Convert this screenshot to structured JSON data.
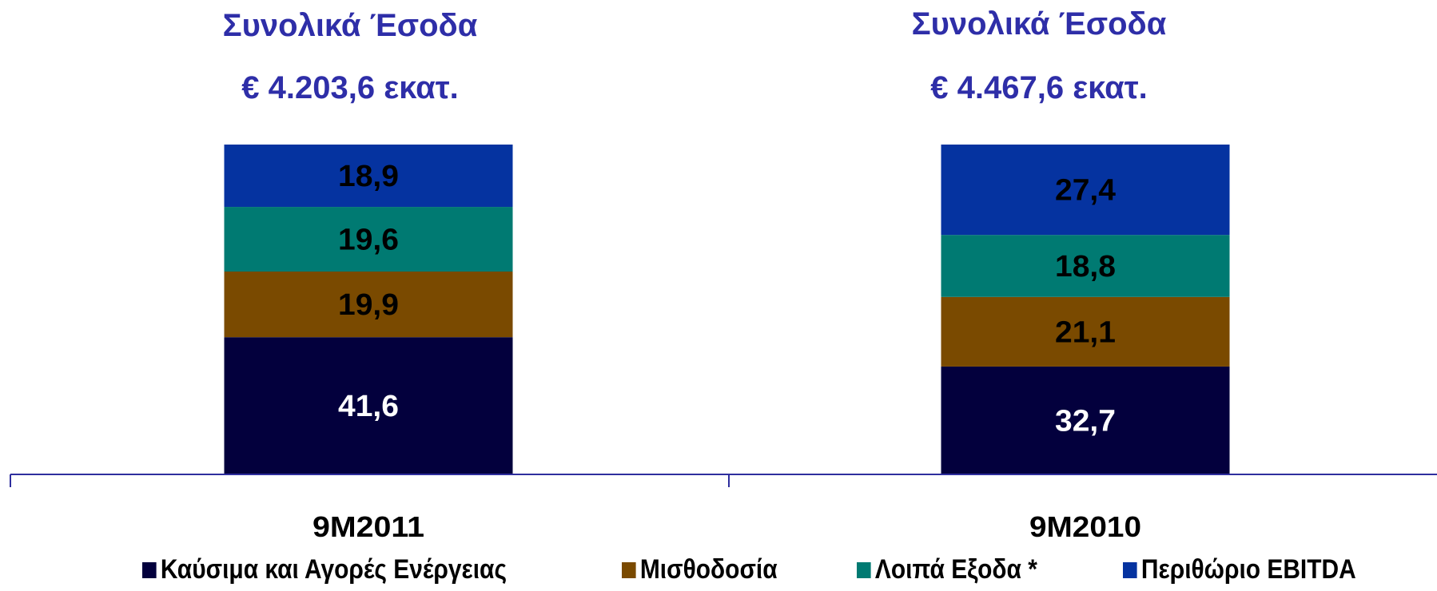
{
  "titles": [
    {
      "line1": "Συνολικά Έσοδα",
      "line2": "€ 4.203,6 εκατ."
    },
    {
      "line1": "Συνολικά Έσοδα",
      "line2": "€ 4.467,6 εκατ."
    }
  ],
  "colors": {
    "title": "#2E2EA8",
    "axis": "#2E2E9E",
    "fuel": "#03003D",
    "payroll": "#7A4A00",
    "other": "#007A72",
    "ebitda": "#0533A0"
  },
  "chart_data": {
    "type": "bar",
    "stacked": true,
    "normalized": "percent",
    "categories": [
      "9M2011",
      "9M2010"
    ],
    "series": [
      {
        "name": "Καύσιμα και Αγορές Ενέργειας",
        "values": [
          41.6,
          32.7
        ],
        "labels": [
          "41,6",
          "32,7"
        ],
        "color": "#03003D"
      },
      {
        "name": "Μισθοδοσία",
        "values": [
          19.9,
          21.1
        ],
        "labels": [
          "19,9",
          "21,1"
        ],
        "color": "#7A4A00"
      },
      {
        "name": "Λοιπά Εξοδα *",
        "values": [
          19.6,
          18.8
        ],
        "labels": [
          "19,6",
          "18,8"
        ],
        "color": "#007A72"
      },
      {
        "name": "Περιθώριο EBITDA",
        "values": [
          18.9,
          27.4
        ],
        "labels": [
          "18,9",
          "27,4"
        ],
        "color": "#0533A0"
      }
    ],
    "legend_position": "bottom",
    "grid": false
  }
}
